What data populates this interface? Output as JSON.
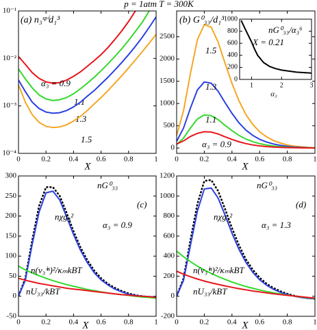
{
  "title": "p = 1atm  T = 300K",
  "chart_data": [
    {
      "type": "line",
      "title": "(a) n₃ˢᵖⁱd₁³",
      "x_label": "X",
      "log_y": true,
      "x": [
        0,
        0.05,
        0.1,
        0.15,
        0.2,
        0.25,
        0.3,
        0.35,
        0.4,
        0.45,
        0.5,
        0.55,
        0.6,
        0.65,
        0.7,
        0.75,
        0.8,
        0.85,
        0.9,
        0.95,
        1
      ],
      "xlim": [
        0,
        1
      ],
      "xticks": [
        0,
        0.2,
        0.4,
        0.6,
        0.8,
        1
      ],
      "ylim": [
        0.0001,
        0.1
      ],
      "yticks": [
        {
          "value": 0.0001,
          "label": "10⁻⁴"
        },
        {
          "value": 0.001,
          "label": "10⁻³"
        },
        {
          "value": 0.01,
          "label": "10⁻²"
        },
        {
          "value": 0.1,
          "label": "10⁻¹"
        }
      ],
      "series": [
        {
          "name": "α₃ = 0.9",
          "color": "#e8141b",
          "values": [
            0.011,
            0.0075,
            0.005,
            0.0038,
            0.0032,
            0.003,
            0.0031,
            0.0035,
            0.0042,
            0.0052,
            0.0068,
            0.009,
            0.012,
            0.017,
            0.025,
            0.038,
            0.06,
            0.1,
            null,
            null,
            null
          ]
        },
        {
          "name": "1.1",
          "color": "#33d92b",
          "values": [
            0.006,
            0.0037,
            0.0024,
            0.0017,
            0.0014,
            0.0013,
            0.00135,
            0.0015,
            0.0018,
            0.0023,
            0.003,
            0.004,
            0.0055,
            0.0077,
            0.011,
            0.016,
            0.024,
            0.037,
            0.058,
            0.1,
            null
          ]
        },
        {
          "name": "1.3",
          "color": "#2a3fe0",
          "values": [
            0.0035,
            0.002,
            0.0012,
            0.00088,
            0.00074,
            0.0007,
            0.00072,
            0.0008,
            0.00095,
            0.0012,
            0.0016,
            0.0021,
            0.0029,
            0.004,
            0.0057,
            0.0082,
            0.012,
            0.018,
            0.028,
            0.045,
            0.075
          ]
        },
        {
          "name": "1.5",
          "color": "#f5a623",
          "values": [
            0.0028,
            0.0012,
            0.00065,
            0.00045,
            0.00037,
            0.00035,
            0.00036,
            0.0004,
            0.00048,
            0.0006,
            0.0008,
            0.0011,
            0.0015,
            0.0021,
            0.003,
            0.0043,
            0.0063,
            0.0093,
            0.014,
            0.021,
            0.032
          ]
        }
      ]
    },
    {
      "type": "line",
      "title": "(b) G⁰₃₃/d₁³",
      "x_label": "X",
      "x": [
        0,
        0.05,
        0.1,
        0.15,
        0.2,
        0.25,
        0.3,
        0.35,
        0.4,
        0.45,
        0.5,
        0.55,
        0.6,
        0.65,
        0.7,
        0.75,
        0.8,
        0.85,
        0.9,
        0.95,
        1
      ],
      "xlim": [
        0,
        1
      ],
      "xticks": [
        0,
        0.2,
        0.4,
        0.6,
        0.8,
        1
      ],
      "ylim": [
        -120,
        3080
      ],
      "yticks": [
        0,
        500,
        1000,
        1500,
        2000,
        2500
      ],
      "series": [
        {
          "name": "1.5",
          "color": "#f5a623",
          "values": [
            280,
            840,
            1680,
            2436,
            2772,
            2716,
            2380,
            1904,
            1456,
            1064,
            756,
            532,
            364,
            252,
            168,
            112,
            70,
            42,
            28,
            14,
            6
          ]
        },
        {
          "name": "1.3",
          "color": "#2a3fe0",
          "values": [
            150,
            450,
            900,
            1305,
            1485,
            1455,
            1275,
            1020,
            780,
            570,
            405,
            285,
            195,
            135,
            90,
            60,
            38,
            23,
            15,
            8,
            3
          ]
        },
        {
          "name": "1.1",
          "color": "#33d92b",
          "values": [
            75,
            225,
            450,
            653,
            743,
            728,
            638,
            510,
            390,
            285,
            203,
            143,
            98,
            68,
            45,
            30,
            19,
            11,
            8,
            4,
            2
          ]
        },
        {
          "name": "α₃ = 0.9",
          "color": "#e8141b",
          "values": [
            90,
            160,
            260,
            330,
            366,
            359,
            315,
            252,
            192,
            141,
            100,
            70,
            48,
            33,
            22,
            15,
            9,
            6,
            4,
            2,
            1
          ]
        }
      ]
    },
    {
      "type": "line",
      "title": "(c)",
      "x_label": "X",
      "annotation": "α₃ = 0.9",
      "x": [
        0,
        0.05,
        0.1,
        0.15,
        0.2,
        0.25,
        0.3,
        0.35,
        0.4,
        0.45,
        0.5,
        0.55,
        0.6,
        0.65,
        0.7,
        0.75,
        0.8,
        0.85,
        0.9,
        0.95,
        1
      ],
      "xlim": [
        0,
        1
      ],
      "xticks": [
        0,
        0.2,
        0.4,
        0.6,
        0.8,
        1
      ],
      "ylim": [
        -50,
        300
      ],
      "yticks": [
        -50,
        0,
        50,
        100,
        150,
        200,
        250,
        300
      ],
      "series": [
        {
          "name": "nG⁰₃₃",
          "color": "#000000",
          "dashed": true,
          "values": [
            0,
            45,
            140,
            225,
            272,
            272,
            250,
            208,
            162,
            122,
            90,
            64,
            45,
            31,
            21,
            13,
            7,
            3,
            0,
            -2,
            -3
          ]
        },
        {
          "name": "nχg₃²",
          "color": "#2a3fe0",
          "values": [
            0,
            40,
            130,
            210,
            258,
            262,
            240,
            198,
            154,
            115,
            84,
            59,
            41,
            28,
            18,
            11,
            5,
            2,
            0,
            -1,
            -2
          ]
        },
        {
          "name": "n(v₃ⁱⁿ)²/κₘkBT",
          "color": "#33d92b",
          "values": [
            75,
            66,
            58,
            51,
            45,
            39,
            34,
            29,
            25,
            21,
            17,
            14,
            11,
            8,
            6,
            4,
            2,
            0,
            -2,
            -3,
            -5
          ]
        },
        {
          "name": "nU₃₃/kBT",
          "color": "#e8141b",
          "values": [
            45,
            40,
            36,
            32,
            29,
            26,
            23,
            20,
            18,
            16,
            14,
            12,
            10,
            8,
            6,
            4,
            3,
            1,
            0,
            -1,
            -3
          ]
        }
      ]
    },
    {
      "type": "line",
      "title": "(d)",
      "x_label": "X",
      "annotation": "α₃ = 1.3",
      "x": [
        0,
        0.05,
        0.1,
        0.15,
        0.2,
        0.25,
        0.3,
        0.35,
        0.4,
        0.45,
        0.5,
        0.55,
        0.6,
        0.65,
        0.7,
        0.75,
        0.8,
        0.85,
        0.9,
        0.95,
        1
      ],
      "xlim": [
        0,
        1
      ],
      "xticks": [
        0,
        0.2,
        0.4,
        0.6,
        0.8,
        1
      ],
      "ylim": [
        -200,
        1200
      ],
      "yticks": [
        -200,
        0,
        200,
        400,
        600,
        800,
        1000,
        1200
      ],
      "series": [
        {
          "name": "nG⁰₃₃",
          "color": "#000000",
          "dashed": true,
          "values": [
            0,
            180,
            560,
            920,
            1150,
            1160,
            1050,
            870,
            680,
            510,
            370,
            265,
            185,
            125,
            82,
            50,
            25,
            5,
            -10,
            -20,
            -25
          ]
        },
        {
          "name": "nχg₃²",
          "color": "#2a3fe0",
          "values": [
            0,
            160,
            510,
            850,
            1070,
            1080,
            980,
            810,
            630,
            470,
            340,
            240,
            165,
            110,
            70,
            40,
            18,
            0,
            -12,
            -20,
            -25
          ]
        },
        {
          "name": "n(v₃ⁱⁿ)²/κₘkBT",
          "color": "#33d92b",
          "values": [
            450,
            395,
            345,
            300,
            262,
            228,
            196,
            168,
            142,
            119,
            98,
            80,
            63,
            48,
            35,
            23,
            12,
            2,
            -8,
            -15,
            -22
          ]
        },
        {
          "name": "nU₃₃/kBT",
          "color": "#e8141b",
          "values": [
            250,
            220,
            195,
            172,
            152,
            134,
            118,
            103,
            89,
            76,
            64,
            53,
            43,
            34,
            25,
            17,
            9,
            2,
            -5,
            -12,
            -18
          ]
        }
      ]
    },
    {
      "type": "line",
      "title": "nG⁰₃₃/α₃⁶",
      "annotation": "X = 0.21",
      "x_label": "α₃",
      "x": [
        0.65,
        0.8,
        1,
        1.1,
        1.2,
        1.4,
        1.6,
        1.8,
        2,
        2.5,
        3
      ],
      "xlim": [
        0.6,
        3
      ],
      "xticks": [
        1,
        2,
        3
      ],
      "ylim": [
        0,
        1000
      ],
      "yticks": [
        0,
        200,
        400,
        600,
        800,
        1000
      ],
      "series": [
        {
          "color": "#000000",
          "values": [
            980,
            820,
            620,
            500,
            400,
            280,
            215,
            180,
            155,
            120,
            105
          ]
        }
      ]
    }
  ]
}
